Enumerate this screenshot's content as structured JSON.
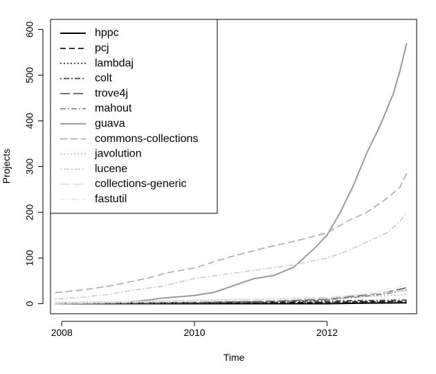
{
  "chart_data": {
    "type": "line",
    "xlabel": "Time",
    "ylabel": "Projects",
    "x_ticks": [
      2008,
      2010,
      2012
    ],
    "y_ticks": [
      0,
      100,
      200,
      300,
      400,
      500,
      600
    ],
    "xlim": [
      2007.83,
      2013.35
    ],
    "ylim": [
      -22,
      622
    ],
    "grid": false,
    "legend_position": "top-left",
    "series": [
      {
        "name": "hppc",
        "color": "#000000",
        "dash": "",
        "width": 2,
        "x": [
          2007.9,
          2009.0,
          2010.0,
          2011.0,
          2012.0,
          2012.5,
          2013.2
        ],
        "y": [
          0,
          0,
          0,
          0,
          0,
          1,
          2
        ]
      },
      {
        "name": "pcj",
        "color": "#000000",
        "dash": "8,5",
        "width": 1.6,
        "x": [
          2007.9,
          2009.0,
          2010.0,
          2011.0,
          2012.0,
          2012.5,
          2013.2
        ],
        "y": [
          1,
          1,
          2,
          2,
          3,
          4,
          5
        ]
      },
      {
        "name": "lambdaj",
        "color": "#222222",
        "dash": "2,3",
        "width": 1.6,
        "x": [
          2007.9,
          2009.0,
          2010.0,
          2011.0,
          2012.0,
          2012.5,
          2013.2
        ],
        "y": [
          0,
          0,
          1,
          2,
          3,
          4,
          5
        ]
      },
      {
        "name": "colt",
        "color": "#333333",
        "dash": "2,3,8,3",
        "width": 1.6,
        "x": [
          2007.9,
          2009.0,
          2010.0,
          2011.0,
          2012.0,
          2012.5,
          2013.2
        ],
        "y": [
          1,
          2,
          3,
          4,
          6,
          7,
          8
        ]
      },
      {
        "name": "trove4j",
        "color": "#555555",
        "dash": "14,5",
        "width": 1.6,
        "x": [
          2007.9,
          2009.0,
          2010.0,
          2011.0,
          2011.5,
          2012.0,
          2012.5,
          2012.9,
          2013.2
        ],
        "y": [
          1,
          2,
          3,
          5,
          7,
          10,
          18,
          25,
          35
        ]
      },
      {
        "name": "mahout",
        "color": "#777777",
        "dash": "8,3,2,3",
        "width": 1.6,
        "x": [
          2007.9,
          2009.0,
          2010.0,
          2011.0,
          2011.5,
          2012.0,
          2012.5,
          2012.9,
          2013.2
        ],
        "y": [
          0,
          1,
          2,
          4,
          6,
          9,
          15,
          22,
          30
        ]
      },
      {
        "name": "guava",
        "color": "#999999",
        "dash": "",
        "width": 2,
        "x": [
          2007.9,
          2008.5,
          2009.0,
          2009.3,
          2009.5,
          2010.0,
          2010.3,
          2010.6,
          2010.9,
          2011.2,
          2011.5,
          2011.8,
          2012.0,
          2012.2,
          2012.4,
          2012.6,
          2012.8,
          2013.0,
          2013.1,
          2013.2
        ],
        "y": [
          0,
          1,
          3,
          8,
          12,
          18,
          25,
          40,
          55,
          62,
          80,
          120,
          150,
          200,
          260,
          330,
          390,
          460,
          510,
          570
        ]
      },
      {
        "name": "commons-collections",
        "color": "#aaaaaa",
        "dash": "10,5",
        "width": 1.6,
        "x": [
          2007.9,
          2008.3,
          2008.7,
          2009.0,
          2009.3,
          2009.6,
          2010.0,
          2010.3,
          2010.6,
          2011.0,
          2011.3,
          2011.6,
          2012.0,
          2012.3,
          2012.6,
          2012.9,
          2013.1,
          2013.2
        ],
        "y": [
          24,
          30,
          38,
          47,
          56,
          68,
          78,
          92,
          105,
          120,
          130,
          140,
          155,
          180,
          200,
          230,
          255,
          285
        ]
      },
      {
        "name": "javolution",
        "color": "#bbbbbb",
        "dash": "2,3",
        "width": 1.6,
        "x": [
          2007.9,
          2009.0,
          2010.0,
          2011.0,
          2012.0,
          2012.5,
          2013.2
        ],
        "y": [
          3,
          5,
          8,
          10,
          12,
          15,
          20
        ]
      },
      {
        "name": "lucene",
        "color": "#cccccc",
        "dash": "2,3,8,3",
        "width": 1.6,
        "x": [
          2007.9,
          2008.3,
          2008.7,
          2009.0,
          2009.5,
          2010.0,
          2010.5,
          2011.0,
          2011.5,
          2012.0,
          2012.3,
          2012.6,
          2012.9,
          2013.1,
          2013.2
        ],
        "y": [
          10,
          14,
          20,
          28,
          38,
          55,
          65,
          75,
          85,
          100,
          115,
          135,
          155,
          180,
          200
        ]
      },
      {
        "name": "collections-generic",
        "color": "#dddddd",
        "dash": "14,5",
        "width": 1.6,
        "x": [
          2007.9,
          2009.0,
          2010.0,
          2011.0,
          2012.0,
          2012.5,
          2013.2
        ],
        "y": [
          2,
          4,
          7,
          10,
          14,
          20,
          28
        ]
      },
      {
        "name": "fastutil",
        "color": "#e6e6e6",
        "dash": "8,3,2,3",
        "width": 1.6,
        "x": [
          2007.9,
          2009.0,
          2010.0,
          2011.0,
          2012.0,
          2012.5,
          2013.2
        ],
        "y": [
          1,
          3,
          5,
          8,
          12,
          20,
          40
        ]
      }
    ]
  }
}
